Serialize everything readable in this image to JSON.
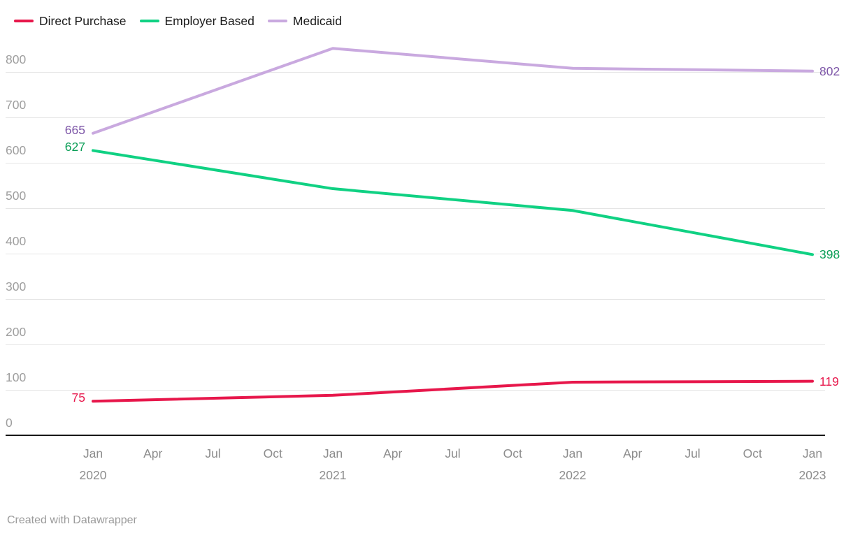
{
  "footer": {
    "credit": "Created with Datawrapper"
  },
  "chart_data": {
    "type": "line",
    "title": "",
    "xlabel": "",
    "ylabel": "",
    "x": [
      "Jan 2020",
      "Jan 2021",
      "Jan 2022",
      "Jan 2023"
    ],
    "series": [
      {
        "name": "Direct Purchase",
        "color": "#e7174b",
        "label_color": "#e7174b",
        "values": [
          75,
          88,
          117,
          119
        ],
        "start_label": "75",
        "end_label": "119"
      },
      {
        "name": "Employer Based",
        "color": "#10d183",
        "label_color": "#0b9e57",
        "values": [
          627,
          543,
          495,
          398
        ],
        "start_label": "627",
        "end_label": "398"
      },
      {
        "name": "Medicaid",
        "color": "#c9a9df",
        "label_color": "#7e57a8",
        "values": [
          665,
          852,
          808,
          802
        ],
        "start_label": "665",
        "end_label": "802"
      }
    ],
    "x_tick_labels": [
      {
        "month": "Jan",
        "year": "2020"
      },
      {
        "month": "Apr"
      },
      {
        "month": "Jul"
      },
      {
        "month": "Oct"
      },
      {
        "month": "Jan",
        "year": "2021"
      },
      {
        "month": "Apr"
      },
      {
        "month": "Jul"
      },
      {
        "month": "Oct"
      },
      {
        "month": "Jan",
        "year": "2022"
      },
      {
        "month": "Apr"
      },
      {
        "month": "Jul"
      },
      {
        "month": "Oct"
      },
      {
        "month": "Jan",
        "year": "2023"
      }
    ],
    "y_ticks": [
      0,
      100,
      200,
      300,
      400,
      500,
      600,
      700,
      800
    ],
    "ylim": [
      0,
      870
    ],
    "grid": true,
    "legend_position": "top-left"
  }
}
